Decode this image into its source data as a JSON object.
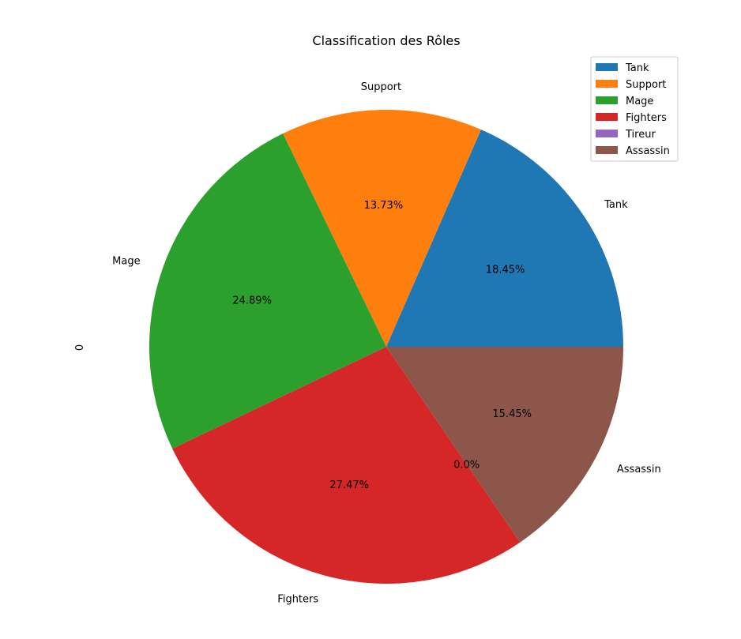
{
  "chart_data": {
    "type": "pie",
    "title": "Classification des Rôles",
    "ylabel": "0",
    "categories": [
      "Tank",
      "Support",
      "Mage",
      "Fighters",
      "Tireur",
      "Assassin"
    ],
    "values": [
      18.45,
      13.73,
      24.89,
      27.47,
      0.0,
      15.45
    ],
    "value_labels": [
      "18.45%",
      "13.73%",
      "24.89%",
      "27.47%",
      "0.0%",
      "15.45%"
    ],
    "colors": [
      "#1f77b4",
      "#ff7f0e",
      "#2ca02c",
      "#d62728",
      "#9467bd",
      "#8c564b"
    ],
    "start_angle_deg": 0,
    "direction": "counterclockwise",
    "legend": {
      "position": "top-right",
      "entries": [
        "Tank",
        "Support",
        "Mage",
        "Fighters",
        "Tireur",
        "Assassin"
      ]
    }
  }
}
